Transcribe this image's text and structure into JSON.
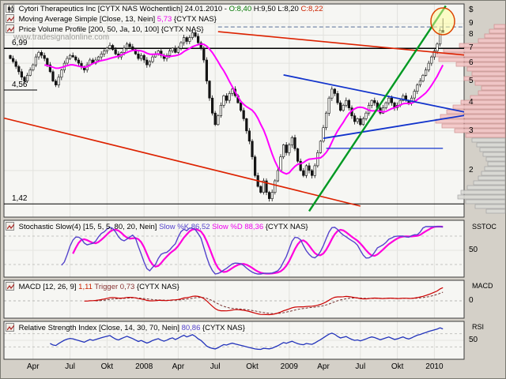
{
  "header": {
    "title": "Cytori Therapeutics Inc [CYTX NAS  Wöchentlich] 24.01.2010",
    "sep": " - ",
    "open_label": "O:8,40",
    "high_label": "H:9,50",
    "low_label": "L:8,20",
    "close_label": "C:8,22",
    "ma_label": "Moving Average Simple [Close, 13, Nein] ",
    "ma_value": "5,73",
    "ma_suffix": " {CYTX NAS}",
    "pvp_label": "Price Volume Profile [200, 50, Ja, 10, 100] {CYTX NAS}",
    "watermark": "www.tradesignalonline.com"
  },
  "panels": {
    "stoch": {
      "label": "Stochastic Slow(4) [15, 5, 5, 80, 20, Nein] ",
      "k_label": "Slow %K 86,52",
      "d_label": " Slow %D 88,36",
      "suffix": " {CYTX NAS}",
      "axis": "SSTOC",
      "mid": "50"
    },
    "macd": {
      "label": "MACD [12, 26, 9] ",
      "value": "1,11",
      "trigger": " Trigger 0,73",
      "suffix": " {CYTX NAS}",
      "axis": "MACD",
      "mid": "0"
    },
    "rsi": {
      "label": "Relative Strength Index [Close, 14, 30, 70, Nein] ",
      "value": "80,86",
      "suffix": " {CYTX NAS}",
      "axis": "RSI",
      "mid": "50"
    }
  },
  "chart_data": {
    "type": "candlestick",
    "instrument": "Cytori Therapeutics Inc",
    "symbol": "CYTX NAS",
    "interval": "Wöchentlich",
    "date": "24.01.2010",
    "scale": "log",
    "last_candle": {
      "open": 8.4,
      "high": 9.5,
      "low": 8.2,
      "close": 8.22
    },
    "closes": [
      6.3,
      6.1,
      5.8,
      5.5,
      5.2,
      5.0,
      5.3,
      5.6,
      5.9,
      6.4,
      6.7,
      6.5,
      6.3,
      5.9,
      5.5,
      5.0,
      4.8,
      5.2,
      5.6,
      6.0,
      6.3,
      6.5,
      6.4,
      6.2,
      6.0,
      5.8,
      5.6,
      5.9,
      6.2,
      6.0,
      6.2,
      6.4,
      6.6,
      6.8,
      7.0,
      7.2,
      6.9,
      6.6,
      6.4,
      6.7,
      7.0,
      7.3,
      7.1,
      6.9,
      6.6,
      6.3,
      6.5,
      6.2,
      5.9,
      6.1,
      6.4,
      6.6,
      6.8,
      6.5,
      6.3,
      6.5,
      6.8,
      7.0,
      6.7,
      7.0,
      7.4,
      7.8,
      7.5,
      7.8,
      8.2,
      7.9,
      7.4,
      7.0,
      6.2,
      5.0,
      4.2,
      3.6,
      3.2,
      3.5,
      3.9,
      4.3,
      4.1,
      4.4,
      4.6,
      4.3,
      4.0,
      3.7,
      3.4,
      3.0,
      2.7,
      2.3,
      1.9,
      1.7,
      1.6,
      1.8,
      1.6,
      1.5,
      1.6,
      1.8,
      2.0,
      2.3,
      2.6,
      2.4,
      2.6,
      2.8,
      2.5,
      2.2,
      2.0,
      1.9,
      2.1,
      2.0,
      1.9,
      2.1,
      2.4,
      2.7,
      3.1,
      3.6,
      4.2,
      4.6,
      4.4,
      4.0,
      3.7,
      3.9,
      4.1,
      3.8,
      3.5,
      3.3,
      3.4,
      3.2,
      3.4,
      3.6,
      3.9,
      4.1,
      4.0,
      3.8,
      3.6,
      3.8,
      4.0,
      4.2,
      4.0,
      3.8,
      3.9,
      4.1,
      4.3,
      4.1,
      4.0,
      4.2,
      4.5,
      4.8,
      5.0,
      5.3,
      5.6,
      6.0,
      6.4,
      6.8,
      7.3,
      8.4,
      8.22
    ],
    "x_ticks": [
      {
        "i": 8,
        "label": "Apr"
      },
      {
        "i": 21,
        "label": "Jul"
      },
      {
        "i": 34,
        "label": "Okt"
      },
      {
        "i": 47,
        "label": "2008"
      },
      {
        "i": 59,
        "label": "Apr"
      },
      {
        "i": 72,
        "label": "Jul"
      },
      {
        "i": 85,
        "label": "Okt"
      },
      {
        "i": 98,
        "label": "2009"
      },
      {
        "i": 110,
        "label": "Apr"
      },
      {
        "i": 123,
        "label": "Jul"
      },
      {
        "i": 136,
        "label": "Okt"
      },
      {
        "i": 149,
        "label": "2010"
      }
    ],
    "y_axis": {
      "currency": "$",
      "ticks": [
        9,
        8,
        7,
        6,
        5,
        4,
        3,
        2
      ]
    },
    "levels": [
      {
        "price": 6.99,
        "label": "6,99",
        "extent": "full"
      },
      {
        "price": 4.56,
        "label": "4,56",
        "extent": "short"
      },
      {
        "price": 1.42,
        "label": "1,42",
        "extent": "full"
      }
    ],
    "trendlines": [
      {
        "i1": -3,
        "p1": 3.44,
        "i2": 123,
        "p2": 1.39,
        "color": "#dd2200",
        "w": 1.6,
        "dash": ""
      },
      {
        "i1": 73,
        "p1": 8.29,
        "i2": 172,
        "p2": 6.3,
        "color": "#dd2200",
        "w": 1.6,
        "dash": ""
      },
      {
        "i1": 96,
        "p1": 5.32,
        "i2": 172,
        "p2": 3.38,
        "color": "#1133cc",
        "w": 1.8,
        "dash": ""
      },
      {
        "i1": 110,
        "p1": 2.78,
        "i2": 172,
        "p2": 3.73,
        "color": "#1133cc",
        "w": 1.8,
        "dash": ""
      },
      {
        "i1": 111,
        "p1": 2.51,
        "i2": 152,
        "p2": 2.51,
        "color": "#1133cc",
        "w": 1.3,
        "dash": ""
      },
      {
        "i1": 105,
        "p1": 1.32,
        "i2": 153,
        "p2": 10.8,
        "color": "#009922",
        "w": 2.4,
        "dash": ""
      }
    ],
    "dashed_level": {
      "i1": 73,
      "price": 8.7,
      "color": "#7788aa"
    },
    "highlight": {
      "cx": 559,
      "cy": 26,
      "rx": 15,
      "ry": 17,
      "fill": "#ffff99",
      "stroke": "#dd4400"
    },
    "volume_profile": {
      "y0": 30,
      "step": 6,
      "bin_h": 5,
      "bins": [
        [
          14,
          "p"
        ],
        [
          20,
          "p"
        ],
        [
          26,
          "p"
        ],
        [
          34,
          "p"
        ],
        [
          58,
          "p"
        ],
        [
          78,
          "p"
        ],
        [
          92,
          "p"
        ],
        [
          84,
          "p"
        ],
        [
          62,
          "p"
        ],
        [
          48,
          "p"
        ],
        [
          42,
          "p"
        ],
        [
          52,
          "p"
        ],
        [
          38,
          "p"
        ],
        [
          30,
          "p"
        ],
        [
          34,
          "p"
        ],
        [
          44,
          "p"
        ],
        [
          56,
          "p"
        ],
        [
          66,
          "p"
        ],
        [
          74,
          "p"
        ],
        [
          82,
          "p"
        ],
        [
          88,
          "p"
        ],
        [
          80,
          "p"
        ],
        [
          64,
          "p"
        ],
        [
          50,
          "p"
        ],
        [
          42,
          "g"
        ],
        [
          36,
          "g"
        ],
        [
          32,
          "g"
        ],
        [
          28,
          "g"
        ],
        [
          24,
          "g"
        ],
        [
          22,
          "g"
        ],
        [
          26,
          "g"
        ],
        [
          30,
          "g"
        ],
        [
          34,
          "g"
        ],
        [
          40,
          "g"
        ],
        [
          48,
          "g"
        ],
        [
          56,
          "g"
        ],
        [
          60,
          "g"
        ],
        [
          50,
          "g"
        ],
        [
          38,
          "g"
        ],
        [
          24,
          "g"
        ]
      ]
    },
    "indicators": {
      "ma_period": 13,
      "stoch": {
        "lookback": 15,
        "smooth": 5,
        "dsmooth": 5,
        "k_last": 86.52,
        "d_last": 88.36,
        "upper": 80,
        "lower": 20
      },
      "macd": {
        "fast": 12,
        "slow": 26,
        "signal": 9,
        "last": 1.11,
        "trigger_last": 0.73
      },
      "rsi": {
        "period": 14,
        "last": 80.86,
        "upper": 70,
        "lower": 30
      }
    },
    "colors": {
      "up": "#f8f8f4",
      "down": "#141414",
      "wick": "#141414",
      "ma": "#ff00ff",
      "k": "#5544cc",
      "d": "#ff00dd",
      "macd": "#cc0000",
      "macd_trigger": "#773333",
      "rsi": "#2233bb",
      "grid": "#e2e2de",
      "panel_bg": "#f6f6f3",
      "border": "#3a3a3a",
      "profile_pink": "#f3c6c6",
      "profile_pink_stroke": "#cc8888",
      "profile_gray": "#dadad6",
      "profile_gray_stroke": "#a0a0a0"
    }
  }
}
